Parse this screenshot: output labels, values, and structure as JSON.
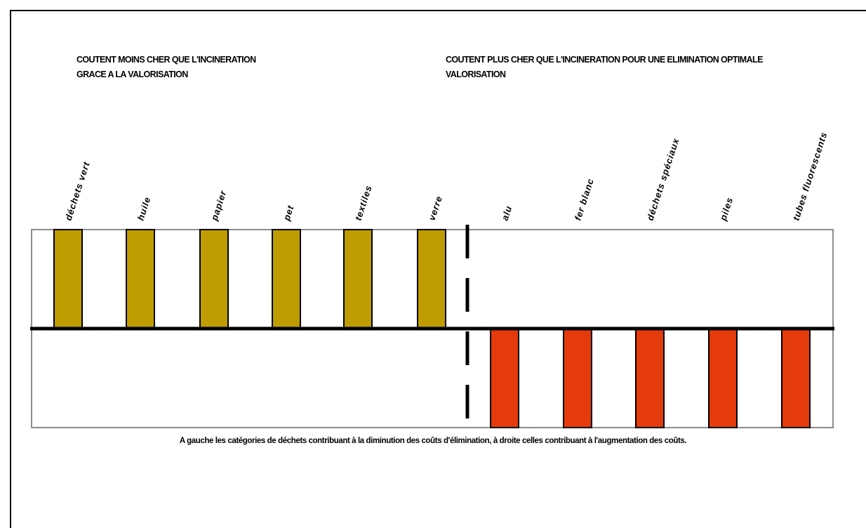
{
  "left_heading": {
    "line1": "COUTENT MOINS CHER QUE L'INCINERATION",
    "line2": "GRACE A LA VALORISATION"
  },
  "right_heading": {
    "line1": "COUTENT PLUS CHER QUE L'INCINERATION POUR UNE ELIMINATION OPTIMALE",
    "line2": "VALORISATION"
  },
  "caption": "A gauche les catégories de déchets contribuant à la diminution des coûts d'élimination, à droite celles contribuant à l'augmentation des coûts.",
  "colors": {
    "positive": "#bf9c00",
    "negative": "#e53a0c",
    "frame": "#8c8c8c"
  },
  "chart_data": {
    "type": "bar",
    "categories": [
      "déchets vert",
      "huile",
      "papier",
      "pet",
      "textiles",
      "verre",
      "alu",
      "fer blanc",
      "déchets spéciaux",
      "piles",
      "tubes fluorescents"
    ],
    "values": [
      1,
      1,
      1,
      1,
      1,
      1,
      -1,
      -1,
      -1,
      -1,
      -1
    ],
    "ylim": [
      -1,
      1
    ],
    "grid": false,
    "separator_after_index": 5
  }
}
